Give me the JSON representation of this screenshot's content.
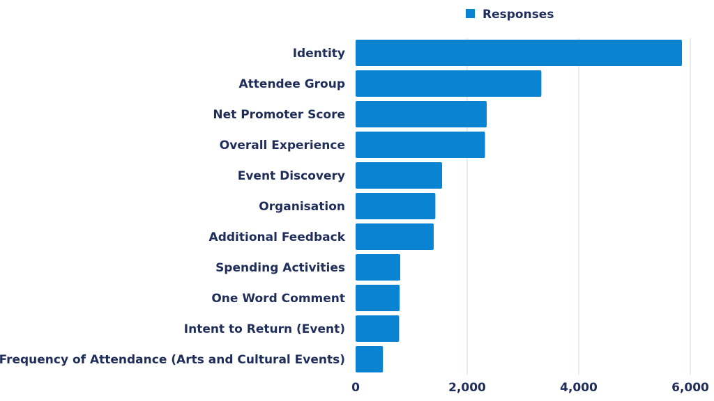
{
  "chart_data": {
    "type": "bar",
    "orientation": "horizontal",
    "categories": [
      "Identity",
      "Attendee Group",
      "Net Promoter Score",
      "Overall Experience",
      "Event Discovery",
      "Organisation",
      "Additional Feedback",
      "Spending Activities",
      "One Word Comment",
      "Intent to Return (Event)",
      "Frequency of Attendance (Arts and Cultural Events)"
    ],
    "series": [
      {
        "name": "Responses",
        "values": [
          5850,
          3330,
          2350,
          2320,
          1550,
          1430,
          1400,
          800,
          790,
          780,
          490
        ]
      }
    ],
    "xlim": [
      0,
      6000
    ],
    "xticks": [
      0,
      2000,
      4000,
      6000
    ],
    "xtick_labels": [
      "0",
      "2,000",
      "4,000",
      "6,000"
    ],
    "grid": "vertical",
    "legend_position": "top",
    "colors": {
      "bar": "#0a84d2",
      "text": "#1f2d5a",
      "grid": "#d4d8e2"
    }
  }
}
